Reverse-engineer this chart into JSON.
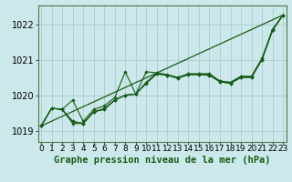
{
  "background_color": "#cce8ea",
  "grid_color": "#aaccd0",
  "line_color": "#1a5c1a",
  "marker_color": "#1a5c1a",
  "xlabel": "Graphe pression niveau de la mer (hPa)",
  "ylim": [
    1018.7,
    1022.55
  ],
  "xlim": [
    -0.3,
    23.3
  ],
  "yticks": [
    1019,
    1020,
    1021,
    1022
  ],
  "xtick_labels": [
    "0",
    "1",
    "2",
    "3",
    "4",
    "5",
    "6",
    "7",
    "8",
    "9",
    "10",
    "11",
    "12",
    "13",
    "14",
    "15",
    "16",
    "17",
    "18",
    "19",
    "20",
    "21",
    "22",
    "23"
  ],
  "series": [
    [
      1019.15,
      1019.65,
      1019.62,
      1019.88,
      1019.28,
      1019.62,
      1019.72,
      1019.95,
      1020.68,
      1020.05,
      1020.68,
      1020.65,
      1020.58,
      1020.52,
      1020.62,
      1020.62,
      1020.62,
      1020.42,
      1020.38,
      1020.55,
      1020.55,
      1021.05,
      1021.85,
      1022.28
    ],
    [
      1019.15,
      1019.65,
      1019.62,
      1019.28,
      1019.22,
      1019.55,
      1019.62,
      1019.88,
      1020.02,
      1020.05,
      1020.38,
      1020.62,
      1020.58,
      1020.5,
      1020.6,
      1020.6,
      1020.58,
      1020.4,
      1020.35,
      1020.52,
      1020.52,
      1021.02,
      1021.85,
      1022.28
    ],
    [
      1019.15,
      1019.65,
      1019.62,
      1019.22,
      1019.22,
      1019.55,
      1019.62,
      1019.88,
      1020.02,
      1020.05,
      1020.35,
      1020.62,
      1020.58,
      1020.5,
      1020.6,
      1020.6,
      1020.58,
      1020.4,
      1020.35,
      1020.52,
      1020.52,
      1021.02,
      1021.85,
      1022.28
    ],
    [
      1019.15,
      1019.65,
      1019.62,
      1019.28,
      1019.22,
      1019.55,
      1019.65,
      1019.88,
      1020.02,
      1020.05,
      1020.38,
      1020.65,
      1020.6,
      1020.52,
      1020.62,
      1020.62,
      1020.62,
      1020.42,
      1020.38,
      1020.55,
      1020.55,
      1021.05,
      1021.88,
      1022.28
    ]
  ],
  "trend_x": [
    0,
    23
  ],
  "trend_y": [
    1019.15,
    1022.28
  ],
  "title_fontsize": 7.5,
  "tick_fontsize": 6.5,
  "ytick_fontsize": 7
}
